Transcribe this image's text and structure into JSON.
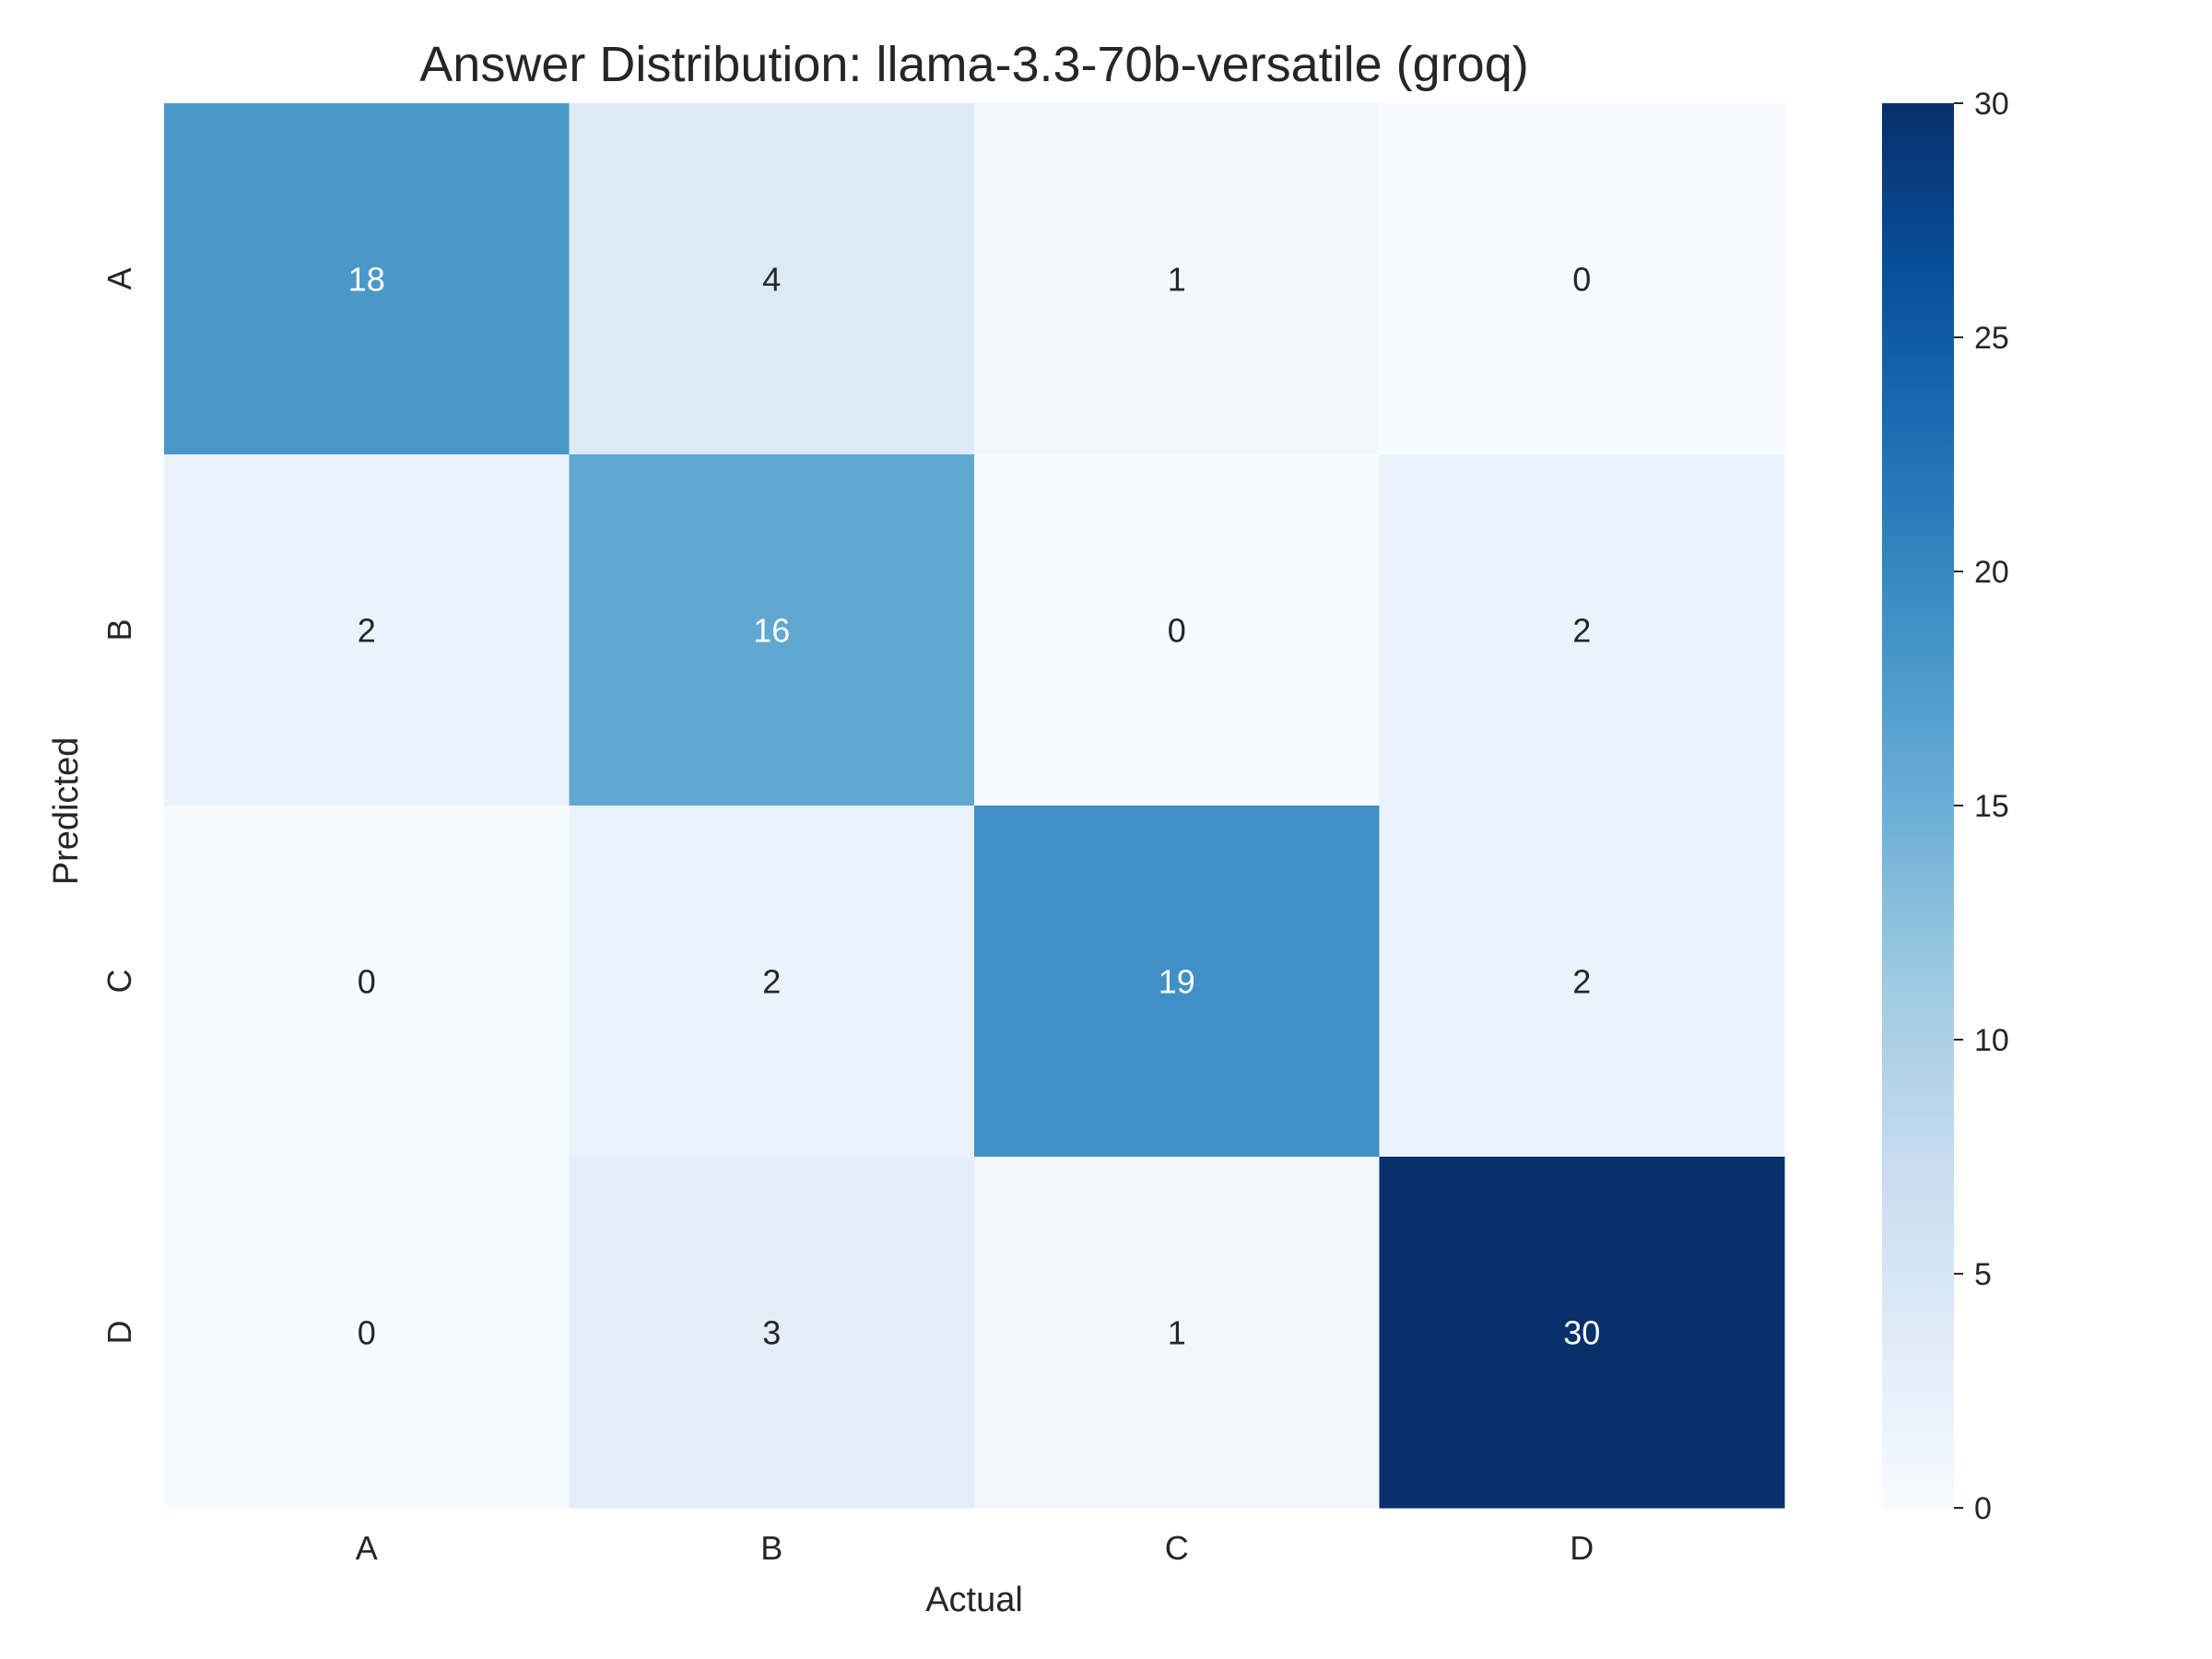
{
  "chart_data": {
    "type": "heatmap",
    "title": "Answer Distribution: llama-3.3-70b-versatile (groq)",
    "xlabel": "Actual",
    "ylabel": "Predicted",
    "x_categories": [
      "A",
      "B",
      "C",
      "D"
    ],
    "y_categories": [
      "A",
      "B",
      "C",
      "D"
    ],
    "values": [
      [
        18,
        4,
        1,
        0
      ],
      [
        2,
        16,
        0,
        2
      ],
      [
        0,
        2,
        19,
        2
      ],
      [
        0,
        3,
        1,
        30
      ]
    ],
    "colorscale": "Blues",
    "colorbar": {
      "min": 0,
      "max": 30,
      "ticks": [
        0,
        5,
        10,
        15,
        20,
        25,
        30
      ]
    },
    "grid": false
  }
}
